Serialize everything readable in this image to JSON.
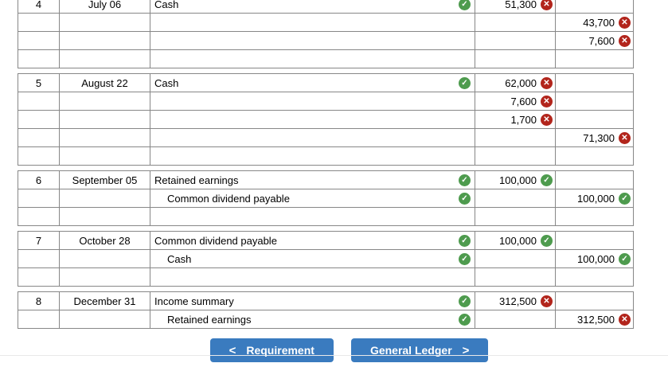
{
  "icons": {
    "check": "✓",
    "cross": "✕"
  },
  "colors": {
    "button_blue": "#3a7bbf",
    "correct_green": "#4e9b4e",
    "wrong_red": "#b2251c",
    "wrong_cell_bg": "#fdf2f2",
    "correct_cell_bg": "#f5faf5",
    "account_cell_bg": "#f3f8f2"
  },
  "entries": [
    {
      "rows": [
        {
          "no": "4",
          "date": "July 06",
          "account": "Cash",
          "indent": false,
          "acct_check": true,
          "debit": "51,300",
          "debit_status": "err",
          "credit": "",
          "credit_status": ""
        },
        {
          "no": "",
          "date": "",
          "account": "",
          "indent": false,
          "acct_check": false,
          "debit": "",
          "debit_status": "",
          "credit": "43,700",
          "credit_status": "err"
        },
        {
          "no": "",
          "date": "",
          "account": "",
          "indent": false,
          "acct_check": false,
          "debit": "",
          "debit_status": "",
          "credit": "7,600",
          "credit_status": "err"
        },
        {
          "no": "",
          "date": "",
          "account": "",
          "indent": false,
          "acct_check": false,
          "debit": "",
          "debit_status": "",
          "credit": "",
          "credit_status": ""
        }
      ]
    },
    {
      "rows": [
        {
          "no": "5",
          "date": "August 22",
          "account": "Cash",
          "indent": false,
          "acct_check": true,
          "debit": "62,000",
          "debit_status": "err",
          "credit": "",
          "credit_status": ""
        },
        {
          "no": "",
          "date": "",
          "account": "",
          "indent": false,
          "acct_check": false,
          "debit": "7,600",
          "debit_status": "err",
          "credit": "",
          "credit_status": ""
        },
        {
          "no": "",
          "date": "",
          "account": "",
          "indent": false,
          "acct_check": false,
          "debit": "1,700",
          "debit_status": "err",
          "credit": "",
          "credit_status": ""
        },
        {
          "no": "",
          "date": "",
          "account": "",
          "indent": false,
          "acct_check": false,
          "debit": "",
          "debit_status": "",
          "credit": "71,300",
          "credit_status": "err"
        },
        {
          "no": "",
          "date": "",
          "account": "",
          "indent": false,
          "acct_check": false,
          "debit": "",
          "debit_status": "",
          "credit": "",
          "credit_status": ""
        }
      ]
    },
    {
      "rows": [
        {
          "no": "6",
          "date": "September 05",
          "account": "Retained earnings",
          "indent": false,
          "acct_check": true,
          "debit": "100,000",
          "debit_status": "ok",
          "credit": "",
          "credit_status": ""
        },
        {
          "no": "",
          "date": "",
          "account": "Common dividend payable",
          "indent": true,
          "acct_check": true,
          "debit": "",
          "debit_status": "",
          "credit": "100,000",
          "credit_status": "ok"
        },
        {
          "no": "",
          "date": "",
          "account": "",
          "indent": false,
          "acct_check": false,
          "debit": "",
          "debit_status": "",
          "credit": "",
          "credit_status": ""
        }
      ]
    },
    {
      "rows": [
        {
          "no": "7",
          "date": "October 28",
          "account": "Common dividend payable",
          "indent": false,
          "acct_check": true,
          "debit": "100,000",
          "debit_status": "ok",
          "credit": "",
          "credit_status": ""
        },
        {
          "no": "",
          "date": "",
          "account": "Cash",
          "indent": true,
          "acct_check": true,
          "debit": "",
          "debit_status": "",
          "credit": "100,000",
          "credit_status": "ok"
        },
        {
          "no": "",
          "date": "",
          "account": "",
          "indent": false,
          "acct_check": false,
          "debit": "",
          "debit_status": "",
          "credit": "",
          "credit_status": ""
        }
      ]
    },
    {
      "rows": [
        {
          "no": "8",
          "date": "December 31",
          "account": "Income summary",
          "indent": false,
          "acct_check": true,
          "debit": "312,500",
          "debit_status": "err",
          "credit": "",
          "credit_status": ""
        },
        {
          "no": "",
          "date": "",
          "account": "Retained earnings",
          "indent": true,
          "acct_check": true,
          "debit": "",
          "debit_status": "",
          "credit": "312,500",
          "credit_status": "err"
        }
      ]
    }
  ],
  "footer": {
    "chevron_left": "<",
    "chevron_right": ">",
    "requirement_label": "Requirement",
    "general_ledger_label": "General Ledger"
  }
}
